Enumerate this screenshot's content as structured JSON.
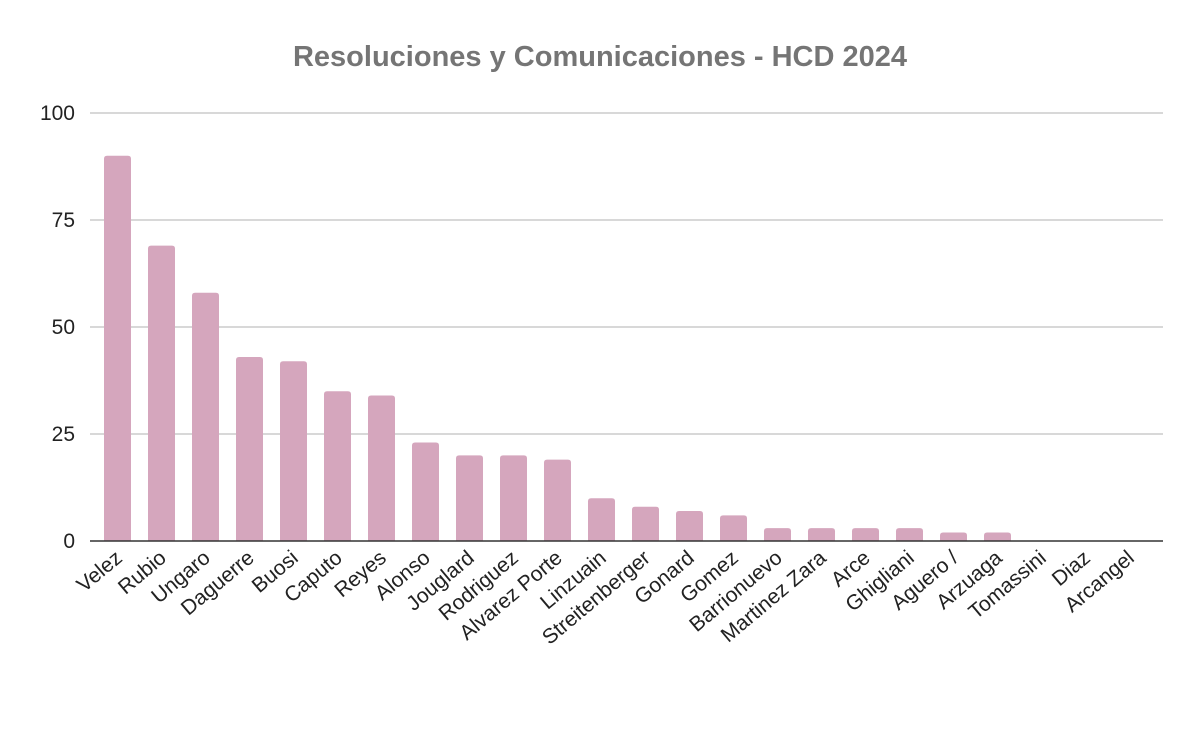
{
  "chart_data": {
    "type": "bar",
    "title": "Resoluciones y Comunicaciones - HCD 2024",
    "xlabel": "",
    "ylabel": "",
    "categories": [
      "Velez",
      "Rubio",
      "Ungaro",
      "Daguerre",
      "Buosi",
      "Caputo",
      "Reyes",
      "Alonso",
      "Jouglard",
      "Rodriguez",
      "Alvarez Porte",
      "Linzuain",
      "Streitenberger",
      "Gonard",
      "Gomez",
      "Barrionuevo",
      "Martinez Zara",
      "Arce",
      "Ghigliani",
      "Aguero /",
      "Arzuaga",
      "Tomassini",
      "Diaz",
      "Arcangel"
    ],
    "values": [
      90,
      69,
      58,
      43,
      42,
      35,
      34,
      23,
      20,
      20,
      19,
      10,
      8,
      7,
      6,
      3,
      3,
      3,
      3,
      2,
      2,
      0,
      0,
      0
    ],
    "ylim": [
      0,
      100
    ],
    "yticks": [
      0,
      25,
      50,
      75,
      100
    ],
    "grid": true,
    "legend": "none",
    "bar_color": "#d5a6bd"
  }
}
